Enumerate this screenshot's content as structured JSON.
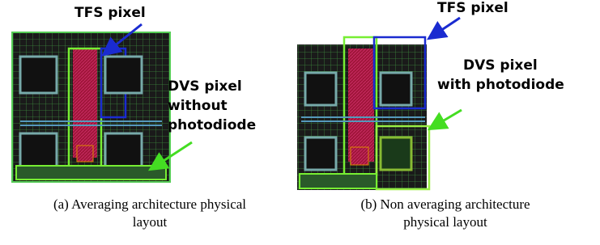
{
  "figure_a": {
    "tfs_label": "TFS pixel",
    "dvs_label_lines": [
      "DVS pixel",
      "without",
      "photodiode"
    ],
    "caption_lines": [
      "(a) Averaging architecture physical",
      "layout"
    ]
  },
  "figure_b": {
    "tfs_label": "TFS pixel",
    "dvs_label_lines": [
      "DVS pixel",
      "with photodiode"
    ],
    "caption_lines": [
      "(b) Non averaging architecture",
      "physical layout"
    ]
  }
}
